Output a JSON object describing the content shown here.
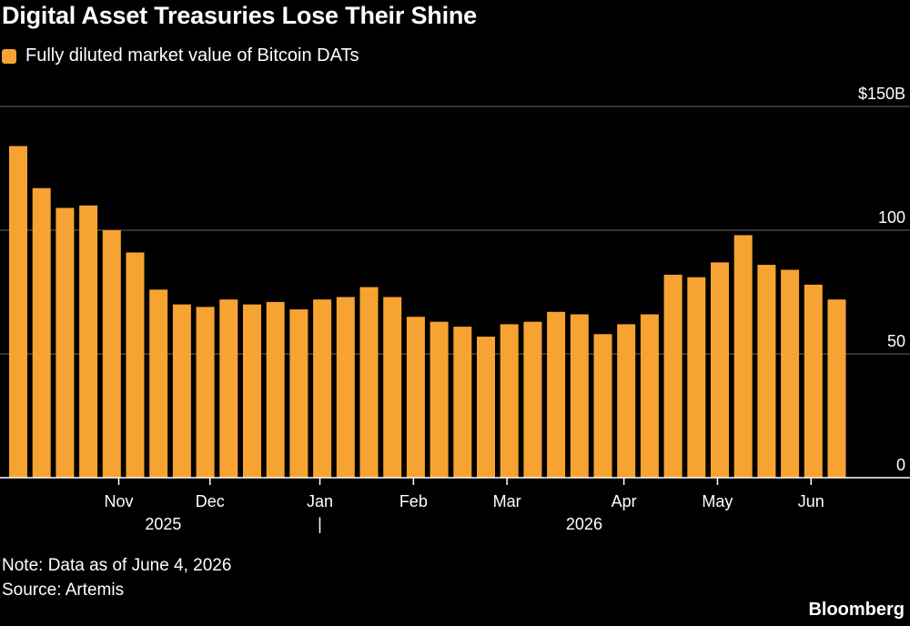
{
  "title": "Digital Asset Treasuries Lose Their Shine",
  "legend": {
    "label": "Fully diluted market value of Bitcoin DATs",
    "color": "#f7a331"
  },
  "note": "Note: Data as of June 4, 2026",
  "source": "Source: Artemis",
  "brand": "Bloomberg",
  "chart_data": {
    "type": "bar",
    "series": [
      {
        "name": "Fully diluted market value of Bitcoin DATs",
        "values": [
          134,
          117,
          109,
          110,
          100,
          91,
          76,
          70,
          69,
          72,
          70,
          71,
          68,
          72,
          73,
          77,
          73,
          65,
          63,
          61,
          57,
          62,
          63,
          67,
          66,
          58,
          62,
          66,
          82,
          81,
          87,
          98,
          86,
          84,
          78,
          72
        ]
      }
    ],
    "ylim": [
      0,
      150
    ],
    "y_ticks": [
      {
        "value": 0,
        "label": "0"
      },
      {
        "value": 50,
        "label": "50"
      },
      {
        "value": 100,
        "label": "100"
      },
      {
        "value": 150,
        "label": "$150B"
      }
    ],
    "x_ticks": [
      {
        "bar_index": 4.3,
        "label": "Nov"
      },
      {
        "bar_index": 8.2,
        "label": "Dec"
      },
      {
        "bar_index": 12.9,
        "label": "Jan"
      },
      {
        "bar_index": 16.9,
        "label": "Feb"
      },
      {
        "bar_index": 20.9,
        "label": "Mar"
      },
      {
        "bar_index": 25.9,
        "label": "Apr"
      },
      {
        "bar_index": 29.9,
        "label": "May"
      },
      {
        "bar_index": 33.9,
        "label": "Jun"
      }
    ],
    "year_labels": [
      {
        "bar_index": 6.2,
        "label": "2025"
      },
      {
        "bar_index": 24.2,
        "label": "2026"
      }
    ],
    "year_divider_index": 12.9,
    "year_divider_label": "|",
    "grid": true,
    "bar_color": "#f7a331",
    "grid_color": "#666666"
  }
}
